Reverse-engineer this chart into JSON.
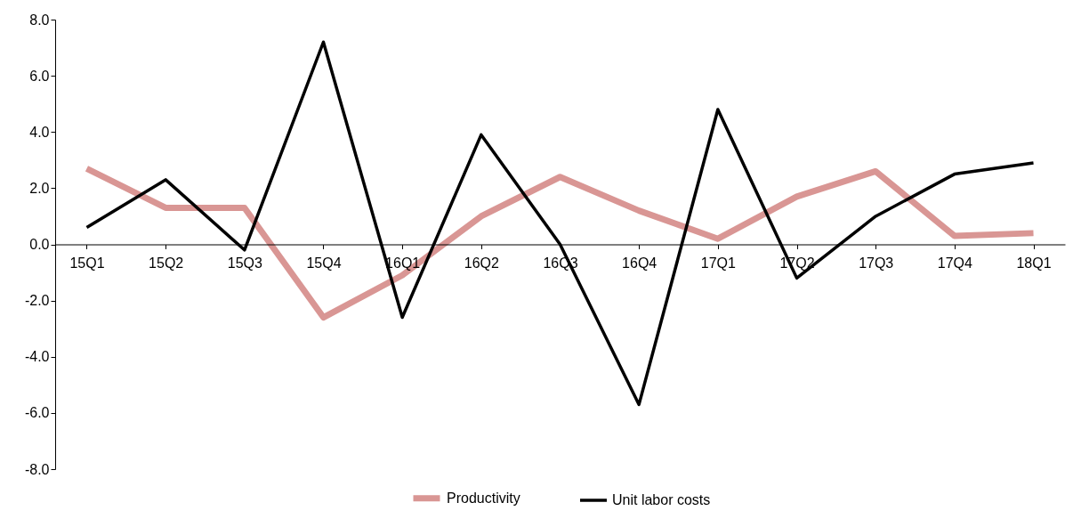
{
  "chart_data": {
    "type": "line",
    "categories": [
      "15Q1",
      "15Q2",
      "15Q3",
      "15Q4",
      "16Q1",
      "16Q2",
      "16Q3",
      "16Q4",
      "17Q1",
      "17Q2",
      "17Q3",
      "17Q4",
      "18Q1"
    ],
    "series": [
      {
        "name": "Productivity",
        "color": "#d99694",
        "values": [
          2.7,
          1.3,
          1.3,
          -2.6,
          -1.1,
          1.0,
          2.4,
          1.2,
          0.2,
          1.7,
          2.6,
          0.3,
          0.4
        ]
      },
      {
        "name": "Unit labor costs",
        "color": "#000000",
        "values": [
          0.6,
          2.3,
          -0.2,
          7.2,
          -2.6,
          3.9,
          0.0,
          -5.7,
          4.8,
          -1.2,
          1.0,
          2.5,
          2.9
        ]
      }
    ],
    "ylim": [
      -8,
      8
    ],
    "yticks": [
      {
        "value": -8,
        "label": "-8.0"
      },
      {
        "value": -6,
        "label": "-6.0"
      },
      {
        "value": -4,
        "label": "-4.0"
      },
      {
        "value": -2,
        "label": "-2.0"
      },
      {
        "value": 0,
        "label": "0.0"
      },
      {
        "value": 2,
        "label": "2.0"
      },
      {
        "value": 4,
        "label": "4.0"
      },
      {
        "value": 6,
        "label": "6.0"
      },
      {
        "value": 8,
        "label": "8.0"
      }
    ],
    "grid": false,
    "legend": "bottom",
    "marker": "none",
    "line_style": "solid"
  }
}
